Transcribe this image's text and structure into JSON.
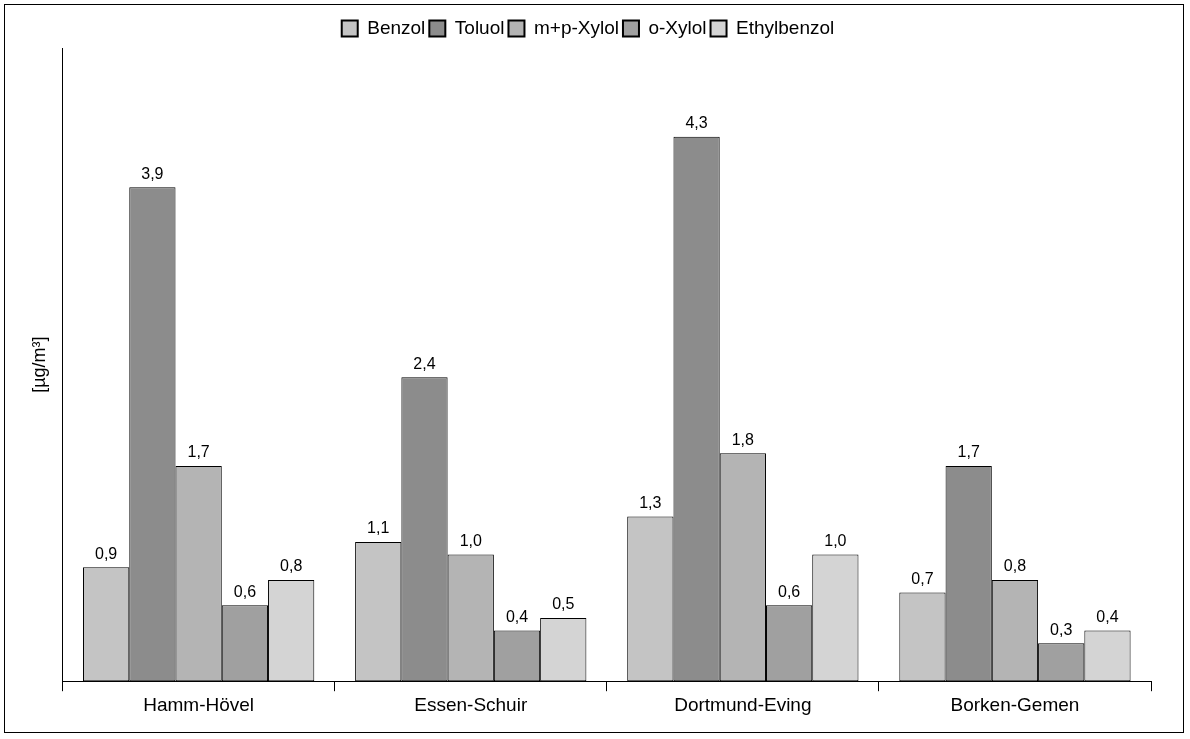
{
  "chart_data": {
    "type": "bar",
    "ylabel": "[µg/m³]",
    "categories": [
      "Hamm-Hövel",
      "Essen-Schuir",
      "Dortmund-Eving",
      "Borken-Gemen"
    ],
    "legend": "top",
    "grid": false,
    "tick_labels": "x",
    "series": [
      {
        "name": "Benzol",
        "color": "#c4c4c4",
        "values": [
          0.9,
          1.1,
          1.3,
          0.7
        ],
        "value_labels": [
          "0,9",
          "1,1",
          "1,3",
          "0,7"
        ]
      },
      {
        "name": "Toluol",
        "color": "#8c8c8c",
        "values": [
          3.9,
          2.4,
          4.3,
          1.7
        ],
        "value_labels": [
          "3,9",
          "2,4",
          "4,3",
          "1,7"
        ]
      },
      {
        "name": "m+p-Xylol",
        "color": "#b4b4b4",
        "values": [
          1.7,
          1.0,
          1.8,
          0.8
        ],
        "value_labels": [
          "1,7",
          "1,0",
          "1,8",
          "0,8"
        ]
      },
      {
        "name": "o-Xylol",
        "color": "#a0a0a0",
        "values": [
          0.6,
          0.4,
          0.6,
          0.3
        ],
        "value_labels": [
          "0,6",
          "0,4",
          "0,6",
          "0,3"
        ]
      },
      {
        "name": "Ethylbenzol",
        "color": "#d4d4d4",
        "values": [
          0.8,
          0.5,
          1.0,
          0.4
        ],
        "value_labels": [
          "0,8",
          "0,5",
          "1,0",
          "0,4"
        ]
      }
    ]
  }
}
